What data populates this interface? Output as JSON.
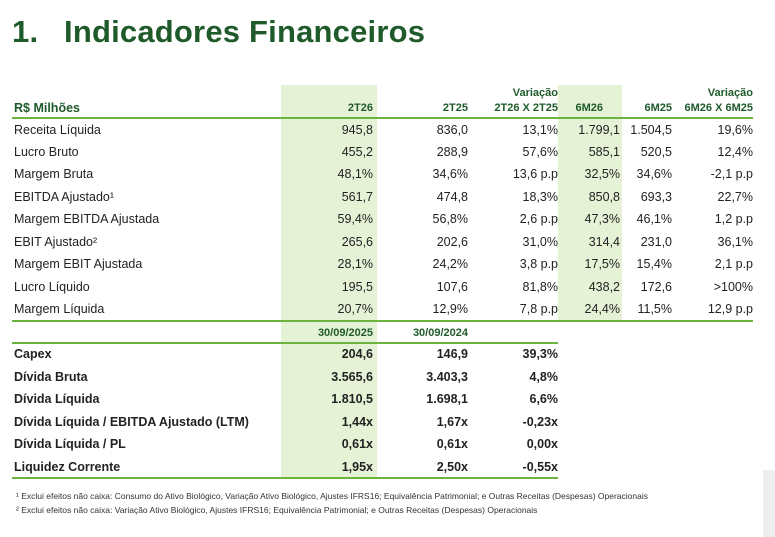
{
  "title": {
    "number": "1.",
    "text": "Indicadores Financeiros"
  },
  "header": {
    "unit_label": "R$ Milhões",
    "cols": [
      "2T26",
      "2T25",
      "2T26 X 2T25",
      "6M26",
      "6M25",
      "6M26 X 6M25"
    ],
    "variation_label_1": "Variação",
    "variation_label_2": "Variação"
  },
  "rows": [
    {
      "label": "Receita Líquida",
      "values": [
        "945,8",
        "836,0",
        "13,1%",
        "1.799,1",
        "1.504,5",
        "19,6%"
      ]
    },
    {
      "label": "Lucro Bruto",
      "values": [
        "455,2",
        "288,9",
        "57,6%",
        "585,1",
        "520,5",
        "12,4%"
      ]
    },
    {
      "label": "Margem Bruta",
      "values": [
        "48,1%",
        "34,6%",
        "13,6 p.p",
        "32,5%",
        "34,6%",
        "-2,1 p.p"
      ]
    },
    {
      "label": "EBITDA Ajustado¹",
      "values": [
        "561,7",
        "474,8",
        "18,3%",
        "850,8",
        "693,3",
        "22,7%"
      ]
    },
    {
      "label": "Margem EBITDA Ajustada",
      "values": [
        "59,4%",
        "56,8%",
        "2,6 p.p",
        "47,3%",
        "46,1%",
        "1,2 p.p"
      ]
    },
    {
      "label": "EBIT Ajustado²",
      "values": [
        "265,6",
        "202,6",
        "31,0%",
        "314,4",
        "231,0",
        "36,1%"
      ]
    },
    {
      "label": "Margem EBIT Ajustada",
      "values": [
        "28,1%",
        "24,2%",
        "3,8 p.p",
        "17,5%",
        "15,4%",
        "2,1 p.p"
      ]
    },
    {
      "label": "Lucro Líquido",
      "values": [
        "195,5",
        "107,6",
        "81,8%",
        "438,2",
        "172,6",
        ">100%"
      ]
    },
    {
      "label": "Margem Líquida",
      "values": [
        "20,7%",
        "12,9%",
        "7,8 p.p",
        "24,4%",
        "11,5%",
        "12,9 p.p"
      ]
    }
  ],
  "balance_header": {
    "col1": "30/09/2025",
    "col2": "30/09/2024"
  },
  "balance_rows": [
    {
      "label": "Capex",
      "values": [
        "204,6",
        "146,9",
        "39,3%"
      ]
    },
    {
      "label": "Dívida Bruta",
      "values": [
        "3.565,6",
        "3.403,3",
        "4,8%"
      ]
    },
    {
      "label": "Dívida Líquida",
      "values": [
        "1.810,5",
        "1.698,1",
        "6,6%"
      ]
    },
    {
      "label": "Dívida Líquida / EBITDA Ajustado (LTM)",
      "values": [
        "1,44x",
        "1,67x",
        "-0,23x"
      ]
    },
    {
      "label": "Dívida Líquida / PL",
      "values": [
        "0,61x",
        "0,61x",
        "0,00x"
      ]
    },
    {
      "label": "Liquidez Corrente",
      "values": [
        "1,95x",
        "2,50x",
        "-0,55x"
      ]
    }
  ],
  "footnotes": [
    "¹ Exclui efeitos não caixa: Consumo do Ativo Biológico, Variação Ativo Biológico, Ajustes IFRS16; Equivalência Patrimonial; e Outras Receitas (Despesas) Operacionais",
    "² Exclui efeitos não caixa: Variação Ativo Biológico, Ajustes IFRS16; Equivalência Patrimonial; e Outras Receitas (Despesas) Operacionais"
  ],
  "colors": {
    "title": "#1f5b2a",
    "highlight": "#e6f2d6",
    "rule": "#6cb33f"
  }
}
